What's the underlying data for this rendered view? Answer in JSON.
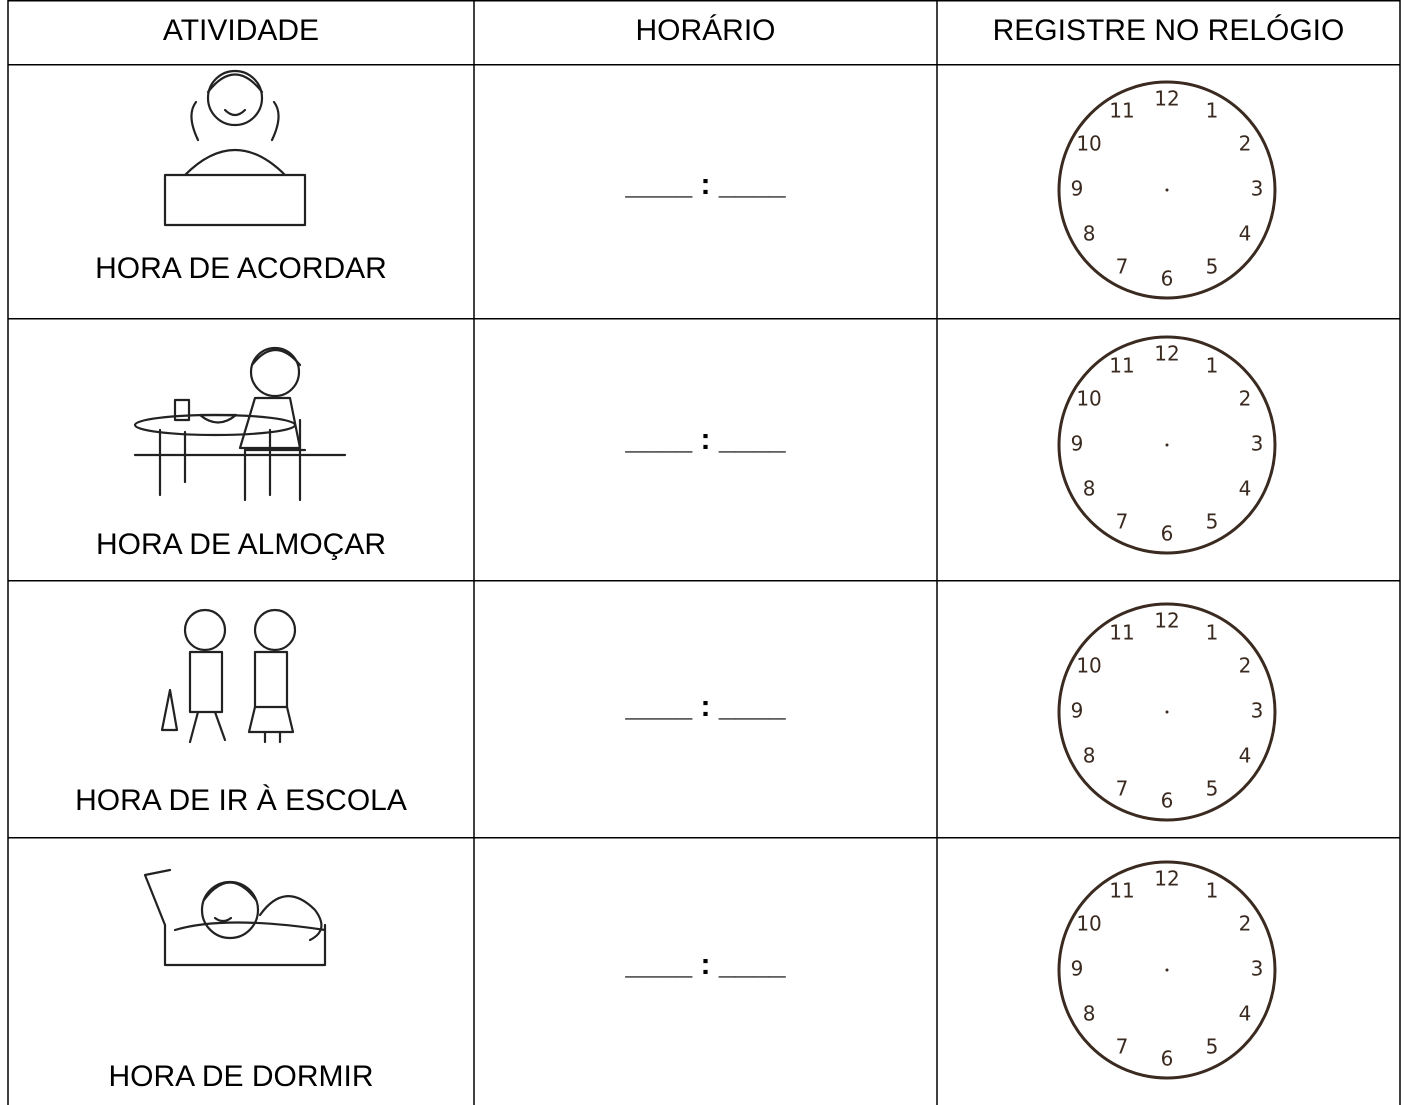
{
  "table": {
    "header": [
      "ATIVIDADE",
      "HORÁRIO",
      "REGISTRE NO RELÓGIO"
    ],
    "rows": [
      {
        "activity": "HORA DE ACORDAR",
        "time": "____ : ____"
      },
      {
        "activity": "HORA DE ALMOÇAR",
        "time": "____ : ____"
      },
      {
        "activity": "HORA DE IR À ESCOLA",
        "time": "____ : ____"
      },
      {
        "activity": "HORA DE DORMIR",
        "time": "____ : ____"
      }
    ],
    "clock_face": [
      "12",
      "1",
      "2",
      "3",
      "4",
      "5",
      "6",
      "7",
      "8",
      "9",
      "10",
      "11"
    ]
  }
}
